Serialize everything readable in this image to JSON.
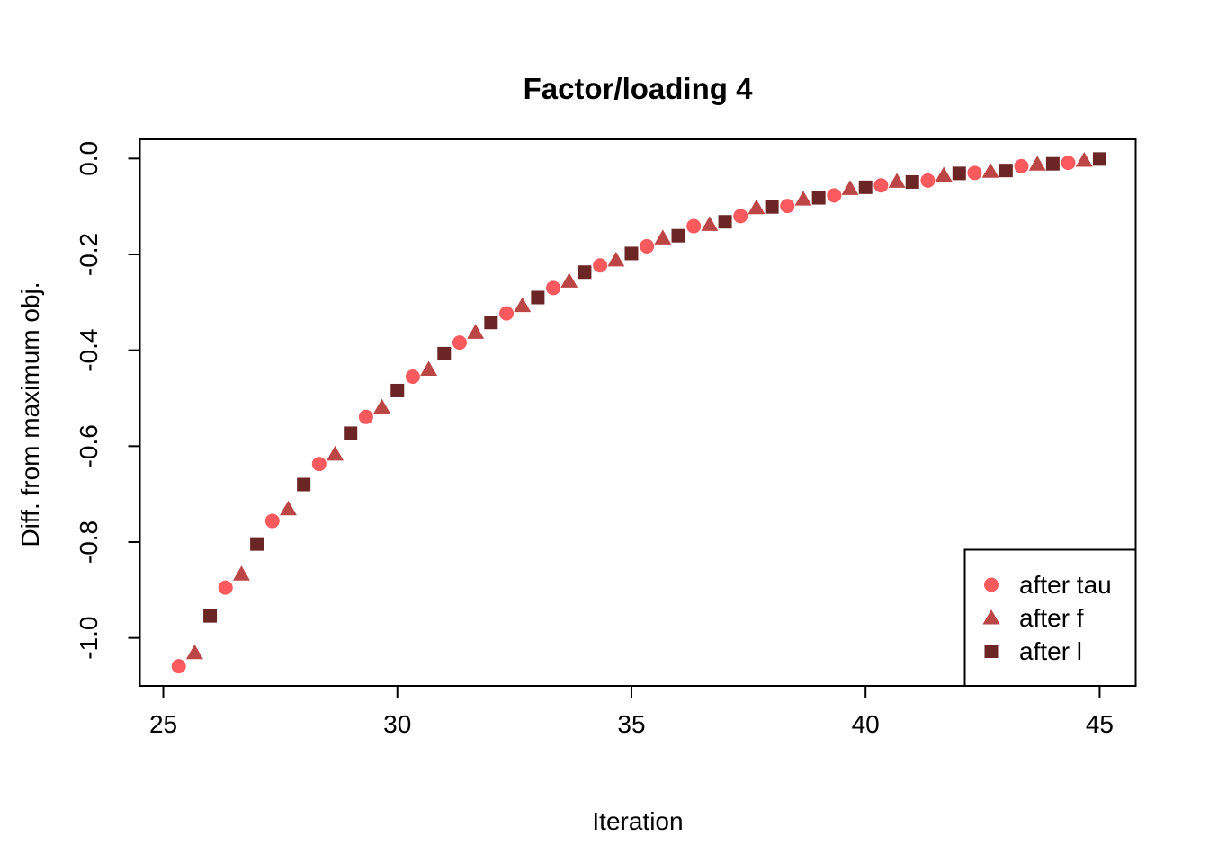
{
  "page": {
    "background": "#FFFFFF",
    "foreground": "#000000"
  },
  "chart_data": {
    "type": "scatter",
    "title": "Factor/loading 4",
    "xlabel": "Iteration",
    "ylabel": "Diff. from maximum obj.",
    "xlim": [
      24.5,
      45.77
    ],
    "ylim": [
      -1.1,
      0.04
    ],
    "x_ticks": [
      25,
      30,
      35,
      40,
      45
    ],
    "x_tick_labels": [
      "25",
      "30",
      "35",
      "40",
      "45"
    ],
    "y_ticks": [
      0.0,
      -0.2,
      -0.4,
      -0.6,
      -0.8,
      -1.0
    ],
    "y_tick_labels": [
      "0.0",
      "-0.2",
      "-0.4",
      "-0.6",
      "-0.8",
      "-1.0"
    ],
    "grid": false,
    "legend_position": "bottom-right",
    "series": [
      {
        "name": "after tau",
        "marker": "circle",
        "color": "#FA5A5E",
        "x": [
          25.33,
          26.33,
          27.33,
          28.33,
          29.33,
          30.33,
          31.33,
          32.33,
          33.33,
          34.33,
          35.33,
          36.33,
          37.33,
          38.33,
          39.33,
          40.33,
          41.33,
          42.33,
          43.33,
          44.33
        ],
        "y": [
          -1.059,
          -0.895,
          -0.756,
          -0.637,
          -0.539,
          -0.455,
          -0.384,
          -0.323,
          -0.27,
          -0.223,
          -0.183,
          -0.141,
          -0.12,
          -0.099,
          -0.077,
          -0.056,
          -0.046,
          -0.03,
          -0.016,
          -0.009
        ]
      },
      {
        "name": "after f",
        "marker": "triangle",
        "color": "#BC4646",
        "x": [
          25.67,
          26.67,
          27.67,
          28.67,
          29.67,
          30.67,
          31.67,
          32.67,
          33.67,
          34.67,
          35.67,
          36.67,
          37.67,
          38.67,
          39.67,
          40.67,
          41.67,
          42.67,
          43.67,
          44.67
        ],
        "y": [
          -1.031,
          -0.867,
          -0.731,
          -0.617,
          -0.519,
          -0.44,
          -0.363,
          -0.307,
          -0.256,
          -0.212,
          -0.166,
          -0.138,
          -0.103,
          -0.085,
          -0.063,
          -0.048,
          -0.035,
          -0.027,
          -0.012,
          -0.004
        ]
      },
      {
        "name": "after l",
        "marker": "square",
        "color": "#6B2525",
        "x": [
          26,
          27,
          28,
          29,
          30,
          31,
          32,
          33,
          34,
          35,
          36,
          37,
          38,
          39,
          40,
          41,
          42,
          43,
          44,
          45
        ],
        "y": [
          -0.954,
          -0.804,
          -0.68,
          -0.573,
          -0.484,
          -0.407,
          -0.342,
          -0.29,
          -0.237,
          -0.198,
          -0.161,
          -0.132,
          -0.101,
          -0.082,
          -0.06,
          -0.049,
          -0.031,
          -0.025,
          -0.011,
          -0.001
        ]
      }
    ]
  },
  "legend": {
    "items": [
      {
        "label": "after tau",
        "marker": "circle"
      },
      {
        "label": "after f",
        "marker": "triangle"
      },
      {
        "label": "after l",
        "marker": "square"
      }
    ]
  }
}
